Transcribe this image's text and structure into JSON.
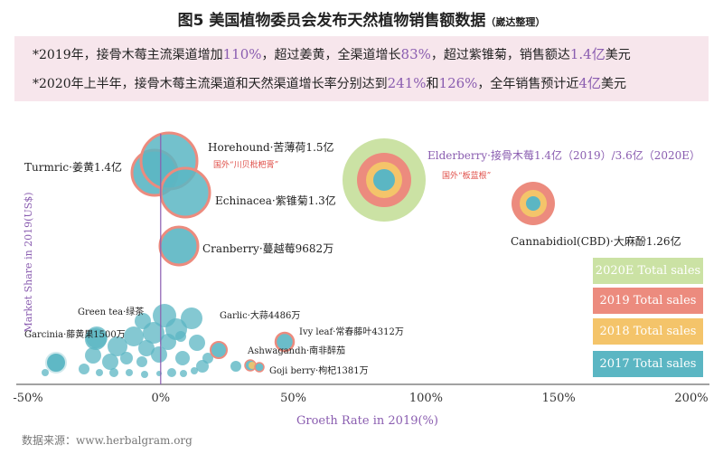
{
  "title": {
    "main": "图5 美国植物委员会发布天然植物销售额数据",
    "note": "（崴达整理）"
  },
  "banner": {
    "line1": [
      {
        "t": "*2019年，接骨木莓主流渠道增加",
        "h": false
      },
      {
        "t": "110%",
        "h": true
      },
      {
        "t": "，超过姜黄，全渠道增长",
        "h": false
      },
      {
        "t": "83%",
        "h": true
      },
      {
        "t": "，超过紫锥菊，销售额达",
        "h": false
      },
      {
        "t": "1.4亿",
        "h": true
      },
      {
        "t": "美元",
        "h": false
      }
    ],
    "line2": [
      {
        "t": "*2020年上半年，接骨木莓主流渠道和天然渠道增长率分别达到",
        "h": false
      },
      {
        "t": "241%",
        "h": true
      },
      {
        "t": "和",
        "h": false
      },
      {
        "t": "126%",
        "h": true
      },
      {
        "t": "，全年销售预计近",
        "h": false
      },
      {
        "t": "4亿",
        "h": true
      },
      {
        "t": "美元",
        "h": false
      }
    ]
  },
  "colors": {
    "sales_2020e": "#cbe2a4",
    "sales_2019": "#ec8b7e",
    "sales_2018": "#f4c46a",
    "sales_2017": "#5bb6c3",
    "accent": "#8a5db0",
    "red_note": "#e0504a"
  },
  "chart_data": {
    "type": "scatter",
    "xlabel": "Groeth Rate in 2019(%)",
    "ylabel": "Market Share in 2019(US$)",
    "x_ticks": [
      "-50%",
      "0%",
      "50%",
      "100%",
      "150%",
      "200%"
    ],
    "xlim": [
      -50,
      200
    ],
    "legend": [
      "2020E Total sales",
      "2019 Total sales",
      "2018 Total sales",
      "2017 Total sales"
    ],
    "legend_position": "bottom-right",
    "labels": [
      {
        "text": "Turmric·姜黄1.4亿"
      },
      {
        "text": "Horehound·苦薄荷1.5亿"
      },
      {
        "text": "国外“川贝枇杷膏”",
        "note": true
      },
      {
        "text": "Echinacea·紫锥菊1.3亿"
      },
      {
        "text": "Cranberry·蔓越莓9682万"
      },
      {
        "text": "Elderberry·接骨木莓1.4亿（2019）/3.6亿（2020E）",
        "accent": true
      },
      {
        "text": "国外“板蓝根”",
        "note": true
      },
      {
        "text": "Cannabidiol(CBD)·大麻酚1.26亿"
      },
      {
        "text": "Green tea·绿茶"
      },
      {
        "text": "Garlic·大蒜4486万"
      },
      {
        "text": "Garcinia·藤黄果1500万"
      },
      {
        "text": "Ivy leaf·常春藤叶4312万"
      },
      {
        "text": "Ashwagandh·南非醉茄"
      },
      {
        "text": "Goji berry·枸杞1381万"
      }
    ]
  },
  "source": "数据来源：www.herbalgram.org"
}
